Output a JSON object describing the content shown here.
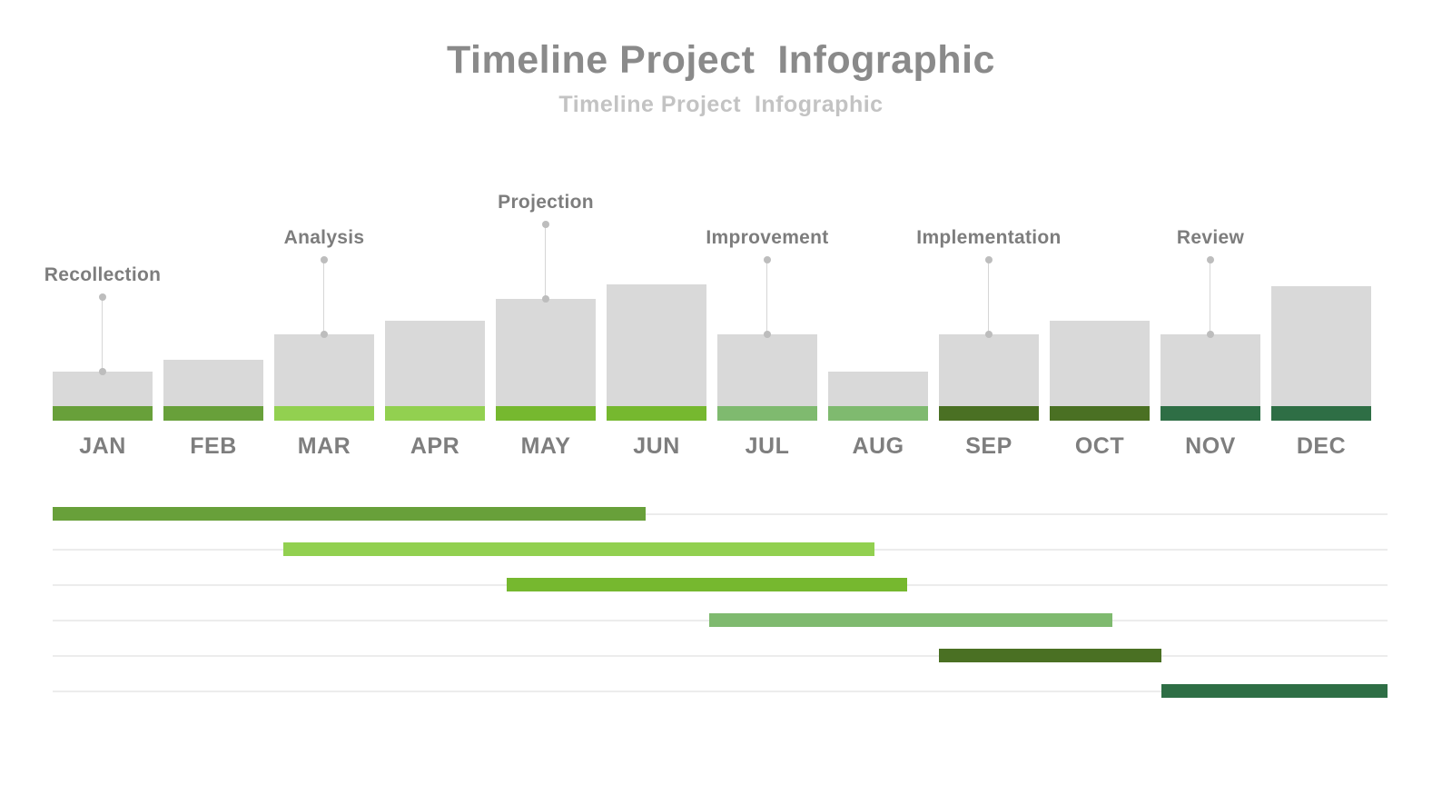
{
  "header": {
    "title": "Timeline Project  Infographic",
    "subtitle": "Timeline Project  Infographic"
  },
  "palette": {
    "bar_gray": "#d9d9d9",
    "gridline": "#ececec",
    "leader_line": "#d6d6d6",
    "leader_dot": "#bdbdbd",
    "title_text": "#8a8a8a",
    "subtitle_text": "#c3c3c3",
    "label_text": "#7e7e7e"
  },
  "chart_data": [
    {
      "type": "bar",
      "title": "Timeline Project  Infographic",
      "categories": [
        "JAN",
        "FEB",
        "MAR",
        "APR",
        "MAY",
        "JUN",
        "JUL",
        "AUG",
        "SEP",
        "OCT",
        "NOV",
        "DEC"
      ],
      "values": [
        54,
        67,
        95,
        110,
        134,
        150,
        95,
        54,
        95,
        110,
        95,
        148
      ],
      "value_note": "relative bar heights in px; no numeric axis shown",
      "bar_color": "#d9d9d9",
      "accent_strip_height": 16,
      "accent_colors": [
        "#68a03a",
        "#68a03a",
        "#92d050",
        "#92d050",
        "#76b82f",
        "#76b82f",
        "#7fba6f",
        "#7fba6f",
        "#4a7023",
        "#4a7023",
        "#2e6e45",
        "#2e6e45"
      ],
      "xlabel": "",
      "ylabel": "",
      "grid": false,
      "annotations": [
        {
          "label": "Recollection",
          "category": "JAN",
          "leader_length": 82
        },
        {
          "label": "Analysis",
          "category": "MAR",
          "leader_length": 82
        },
        {
          "label": "Projection",
          "category": "MAY",
          "leader_length": 82
        },
        {
          "label": "Improvement",
          "category": "JUL",
          "leader_length": 82
        },
        {
          "label": "Implementation",
          "category": "SEP",
          "leader_length": 82
        },
        {
          "label": "Review",
          "category": "NOV",
          "leader_length": 82
        }
      ]
    },
    {
      "type": "gantt",
      "x_range_months": [
        0,
        12
      ],
      "month_of_index": [
        "JAN",
        "FEB",
        "MAR",
        "APR",
        "MAY",
        "JUN",
        "JUL",
        "AUG",
        "SEP",
        "OCT",
        "NOV",
        "DEC"
      ],
      "grid": true,
      "bars": [
        {
          "phase": "Recollection",
          "start_month": 0.0,
          "end_month": 5.33,
          "color": "#68a03a"
        },
        {
          "phase": "Analysis",
          "start_month": 2.07,
          "end_month": 7.39,
          "color": "#92d050"
        },
        {
          "phase": "Projection",
          "start_month": 4.08,
          "end_month": 7.68,
          "color": "#76b82f"
        },
        {
          "phase": "Improvement",
          "start_month": 5.9,
          "end_month": 9.53,
          "color": "#7fba6f"
        },
        {
          "phase": "Implementation",
          "start_month": 7.97,
          "end_month": 9.97,
          "color": "#4a7023"
        },
        {
          "phase": "Review",
          "start_month": 9.97,
          "end_month": 12.0,
          "color": "#2e6e45"
        }
      ]
    }
  ]
}
